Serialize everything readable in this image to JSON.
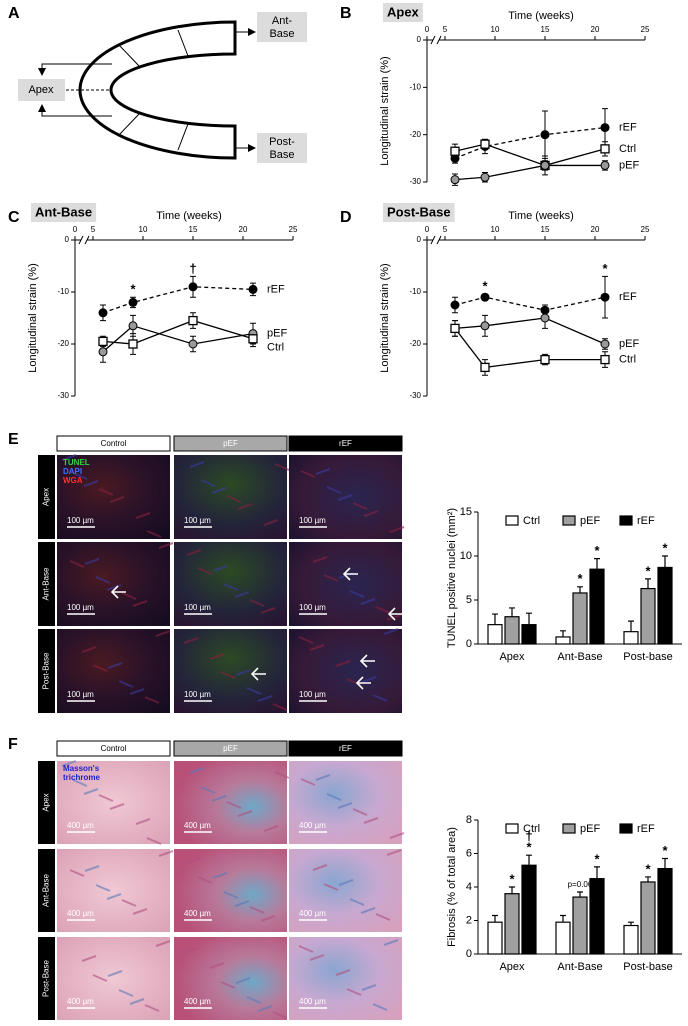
{
  "panel_labels": [
    "A",
    "B",
    "C",
    "D",
    "E",
    "F"
  ],
  "diagram": {
    "ant_base": [
      "Ant-",
      "Base"
    ],
    "apex": "Apex",
    "post_base": [
      "Post-",
      "Base"
    ]
  },
  "chart_data": [
    {
      "type": "line",
      "title": "Apex",
      "x_label": "Time (weeks)",
      "y_label": "Longitudinal strain (%)",
      "x": [
        6,
        9,
        15,
        21
      ],
      "xlim": [
        0,
        25
      ],
      "xticks": [
        0,
        5,
        10,
        15,
        20,
        25
      ],
      "axis_break": true,
      "ylim": [
        -30,
        0
      ],
      "yticks": [
        0,
        -10,
        -20,
        -30
      ],
      "legend": "right",
      "series": [
        {
          "name": "rEF",
          "color": "#000000",
          "marker": "circle",
          "line_style": "dashed",
          "values": [
            -25,
            -22.5,
            -20,
            -18.5
          ],
          "errors": [
            1,
            1.5,
            5,
            4
          ]
        },
        {
          "name": "Ctrl",
          "color": "#ffffff",
          "marker": "square",
          "line_style": "solid",
          "values": [
            -23.5,
            -22,
            -26.5,
            -23
          ],
          "errors": [
            1.5,
            1,
            2,
            1.5
          ]
        },
        {
          "name": "pEF",
          "color": "#999999",
          "marker": "circle",
          "line_style": "solid",
          "values": [
            -29.5,
            -29,
            -26.5,
            -26.5
          ],
          "errors": [
            1.2,
            1,
            1,
            1
          ]
        }
      ]
    },
    {
      "type": "line",
      "title": "Ant-Base",
      "x_label": "Time (weeks)",
      "y_label": "Longitudinal strain (%)",
      "x": [
        6,
        9,
        15,
        21
      ],
      "xlim": [
        0,
        25
      ],
      "xticks": [
        0,
        5,
        10,
        15,
        20,
        25
      ],
      "axis_break": true,
      "ylim": [
        -30,
        0
      ],
      "yticks": [
        0,
        -10,
        -20,
        -30
      ],
      "legend": "right",
      "series": [
        {
          "name": "rEF",
          "color": "#000000",
          "marker": "circle",
          "line_style": "dashed",
          "values": [
            -14,
            -12,
            -9,
            -9.5
          ],
          "errors": [
            1.5,
            1,
            2,
            1.2
          ],
          "annotations": [
            null,
            [
              "*"
            ],
            [
              "†"
            ],
            null
          ]
        },
        {
          "name": "pEF",
          "color": "#999999",
          "marker": "circle",
          "line_style": "solid",
          "values": [
            -21.5,
            -16.5,
            -20,
            -18
          ],
          "errors": [
            2,
            2,
            1.5,
            2
          ]
        },
        {
          "name": "Ctrl",
          "color": "#ffffff",
          "marker": "square",
          "line_style": "solid",
          "values": [
            -19.5,
            -20,
            -15.5,
            -19
          ],
          "errors": [
            1,
            2,
            1.5,
            1.5
          ]
        }
      ]
    },
    {
      "type": "line",
      "title": "Post-Base",
      "x_label": "Time (weeks)",
      "y_label": "Longitudinal strain (%)",
      "x": [
        6,
        9,
        15,
        21
      ],
      "xlim": [
        0,
        25
      ],
      "xticks": [
        0,
        5,
        10,
        15,
        20,
        25
      ],
      "axis_break": true,
      "ylim": [
        -30,
        0
      ],
      "yticks": [
        0,
        -10,
        -20,
        -30
      ],
      "legend": "right",
      "series": [
        {
          "name": "rEF",
          "color": "#000000",
          "marker": "circle",
          "line_style": "dashed",
          "values": [
            -12.5,
            -11,
            -13.5,
            -11
          ],
          "errors": [
            1.5,
            0.6,
            1,
            4
          ],
          "annotations": [
            null,
            [
              "*"
            ],
            null,
            [
              "*"
            ]
          ]
        },
        {
          "name": "pEF",
          "color": "#999999",
          "marker": "circle",
          "line_style": "solid",
          "values": [
            -17,
            -16.5,
            -15,
            -20
          ],
          "errors": [
            1.5,
            2,
            2,
            1
          ]
        },
        {
          "name": "Ctrl",
          "color": "#ffffff",
          "marker": "square",
          "line_style": "solid",
          "values": [
            -17,
            -24.5,
            -23,
            -23
          ],
          "errors": [
            1.5,
            1.5,
            1,
            1.5
          ]
        }
      ]
    },
    {
      "type": "bar",
      "y_label": "TUNEL positive nuclei (mm²)",
      "categories": [
        "Apex",
        "Ant-Base",
        "Post-base"
      ],
      "ylim": [
        0,
        15
      ],
      "yticks": [
        0,
        5,
        10,
        15
      ],
      "legend": "top",
      "series": [
        {
          "name": "Ctrl",
          "color": "#ffffff",
          "values": [
            2.2,
            0.8,
            1.4
          ],
          "errors": [
            1.2,
            0.7,
            1.2
          ]
        },
        {
          "name": "pEF",
          "color": "#a0a0a0",
          "values": [
            3.1,
            5.8,
            6.3
          ],
          "errors": [
            1.0,
            0.7,
            1.1
          ],
          "annotations": [
            null,
            [
              "*"
            ],
            [
              "*"
            ]
          ]
        },
        {
          "name": "rEF",
          "color": "#000000",
          "values": [
            2.2,
            8.5,
            8.7
          ],
          "errors": [
            1.3,
            1.2,
            1.3
          ],
          "annotations": [
            null,
            [
              "*"
            ],
            [
              "*"
            ]
          ]
        }
      ]
    },
    {
      "type": "bar",
      "y_label": "Fibrosis (% of total area)",
      "categories": [
        "Apex",
        "Ant-Base",
        "Post-base"
      ],
      "ylim": [
        0,
        8
      ],
      "yticks": [
        0,
        2,
        4,
        6,
        8
      ],
      "legend": "top",
      "series": [
        {
          "name": "Ctrl",
          "color": "#ffffff",
          "values": [
            1.9,
            1.9,
            1.7
          ],
          "errors": [
            0.4,
            0.4,
            0.2
          ]
        },
        {
          "name": "pEF",
          "color": "#a0a0a0",
          "values": [
            3.6,
            3.4,
            4.3
          ],
          "errors": [
            0.4,
            0.3,
            0.3
          ],
          "annotations": [
            [
              "*"
            ],
            [
              "p=0.06"
            ],
            [
              "*"
            ]
          ]
        },
        {
          "name": "rEF",
          "color": "#000000",
          "values": [
            5.3,
            4.5,
            5.1
          ],
          "errors": [
            0.6,
            0.7,
            0.6
          ],
          "annotations": [
            [
              "†",
              "*"
            ],
            [
              "*"
            ],
            [
              "*"
            ]
          ]
        }
      ]
    }
  ],
  "micrographs": [
    {
      "columns": [
        "Control",
        "pEF",
        "rEF"
      ],
      "rows": [
        "Apex",
        "Ant-Base",
        "Post-Base"
      ],
      "stain_labels": [
        "TUNEL",
        "DAPI",
        "WGA"
      ],
      "scale_bar": "100 µm"
    },
    {
      "columns": [
        "Control",
        "pEF",
        "rEF"
      ],
      "rows": [
        "Apex",
        "Ant-Base",
        "Post-Base"
      ],
      "stain_labels": [
        "Masson's",
        "trichrome"
      ],
      "scale_bar": "400 µm"
    }
  ]
}
